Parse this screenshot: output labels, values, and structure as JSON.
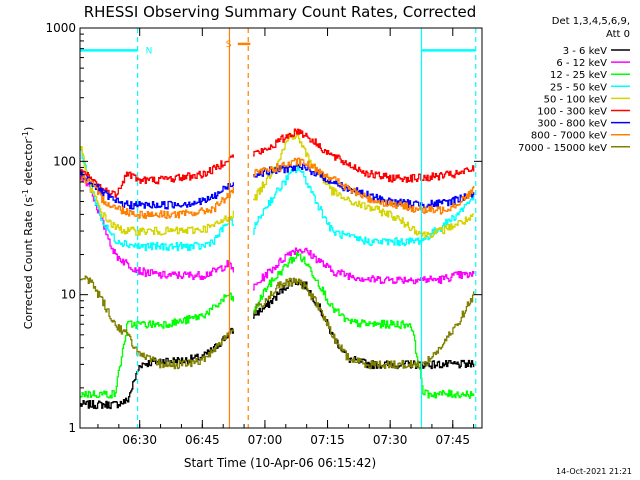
{
  "chart_data": {
    "type": "line",
    "title": "RHESSI Observing Summary Count Rates, Corrected",
    "xlabel": "Start Time (10-Apr-06 06:15:42)",
    "ylabel_main": "Corrected Count Rate (s",
    "ylabel_sup1": "-1",
    "ylabel_mid": " detector",
    "ylabel_sup2": "-1",
    "ylabel_end": ")",
    "ylabel": "Corrected Count Rate (s-1 detector-1)",
    "y_scale": "log",
    "ylim": [
      1,
      1000
    ],
    "xlim": [
      "06:15:42",
      "07:52:00"
    ],
    "x_ticks": [
      "06:30",
      "06:45",
      "07:00",
      "07:15",
      "07:30",
      "07:45"
    ],
    "y_ticks": [
      "1",
      "10",
      "100",
      "1000"
    ],
    "legend_header": [
      "Det 1,3,4,5,6,9,",
      "Att 0"
    ],
    "legend_position": "top-right",
    "data_gaps": [
      [
        "06:52:30",
        "06:57:00"
      ]
    ],
    "markers": [
      {
        "label": "N",
        "color": "#00ffff",
        "level": 680,
        "start": "06:15:42",
        "end": "06:29:30"
      },
      {
        "label": "",
        "color": "#00ffff",
        "level": 680,
        "start": "07:37:30",
        "end": "07:50:30"
      },
      {
        "label": "S",
        "color": "#ff8000",
        "level": 760,
        "start": "06:53:30",
        "end": "06:56:30"
      }
    ],
    "vlines": [
      {
        "time": "06:29:30",
        "color": "#00ffff",
        "style": "dashed"
      },
      {
        "time": "07:37:30",
        "color": "#00ffff",
        "style": "solid"
      },
      {
        "time": "07:50:30",
        "color": "#00ffff",
        "style": "dashed"
      },
      {
        "time": "06:51:30",
        "color": "#ff8000",
        "style": "solid"
      },
      {
        "time": "06:56:00",
        "color": "#ff8000",
        "style": "dashed"
      }
    ],
    "x": [
      "06:15:42",
      "06:18",
      "06:21",
      "06:24",
      "06:27",
      "06:30",
      "06:35",
      "06:40",
      "06:45",
      "06:48",
      "06:51",
      "06:57",
      "07:00",
      "07:03",
      "07:06",
      "07:08",
      "07:10",
      "07:13",
      "07:16",
      "07:20",
      "07:25",
      "07:30",
      "07:35",
      "07:38",
      "07:42",
      "07:46",
      "07:50"
    ],
    "series": [
      {
        "name": "3 - 6 keV",
        "color": "#000000",
        "values": [
          1.5,
          1.5,
          1.5,
          1.5,
          1.6,
          3.0,
          3.2,
          3.2,
          3.4,
          4.0,
          5.0,
          7.0,
          8.0,
          10.0,
          12.5,
          12.5,
          11.5,
          8.0,
          5.0,
          3.3,
          3.0,
          3.0,
          3.0,
          3.0,
          3.0,
          3.0,
          3.0
        ]
      },
      {
        "name": "6 - 12 keV",
        "color": "#ff00ff",
        "values": [
          80,
          64,
          35,
          20,
          17,
          15,
          14,
          14,
          14,
          15,
          17,
          11,
          14,
          17,
          21,
          22,
          21,
          18,
          15,
          14,
          13,
          13,
          13,
          13,
          13,
          14,
          14
        ]
      },
      {
        "name": "12 - 25 keV",
        "color": "#00ff00",
        "values": [
          1.8,
          1.8,
          1.8,
          1.8,
          6.0,
          6.0,
          6.0,
          6.3,
          7,
          8,
          10,
          7,
          11,
          14,
          18,
          20,
          17,
          12,
          8,
          6.2,
          6.0,
          6.0,
          6.0,
          1.8,
          1.8,
          1.8,
          1.8
        ]
      },
      {
        "name": "25 - 50 keV",
        "color": "#00ffff",
        "values": [
          120,
          70,
          35,
          26,
          24,
          23,
          23,
          23,
          23,
          26,
          35,
          30,
          45,
          60,
          80,
          90,
          70,
          45,
          30,
          27,
          25,
          25,
          25,
          26,
          32,
          40,
          55
        ]
      },
      {
        "name": "50 - 100 keV",
        "color": "#d4d400",
        "values": [
          130,
          65,
          40,
          32,
          30,
          30,
          30,
          30,
          31,
          33,
          38,
          50,
          70,
          100,
          160,
          150,
          110,
          80,
          60,
          50,
          45,
          40,
          32,
          28,
          30,
          34,
          38
        ]
      },
      {
        "name": "100 - 300 keV",
        "color": "#ff0000",
        "values": [
          85,
          75,
          62,
          56,
          82,
          72,
          73,
          76,
          80,
          88,
          105,
          115,
          120,
          140,
          160,
          170,
          155,
          130,
          110,
          95,
          80,
          75,
          75,
          75,
          78,
          80,
          88
        ]
      },
      {
        "name": "300 - 800 keV",
        "color": "#0000ff",
        "values": [
          80,
          72,
          58,
          50,
          47,
          47,
          47,
          48,
          50,
          55,
          65,
          80,
          84,
          86,
          90,
          90,
          88,
          80,
          70,
          62,
          55,
          50,
          48,
          48,
          48,
          52,
          58
        ]
      },
      {
        "name": "800 - 7000 keV",
        "color": "#ff8000",
        "values": [
          75,
          70,
          52,
          45,
          42,
          40,
          40,
          40,
          42,
          45,
          55,
          80,
          85,
          90,
          96,
          100,
          95,
          85,
          75,
          62,
          52,
          48,
          45,
          43,
          43,
          48,
          62
        ]
      },
      {
        "name": "7000 - 15000 keV",
        "color": "#808000",
        "values": [
          13,
          13,
          9,
          6,
          5,
          3.5,
          3.0,
          3.0,
          3.2,
          4.0,
          5.0,
          7.5,
          9.0,
          11.5,
          12.5,
          12.5,
          11,
          8,
          5,
          3.3,
          3.0,
          3.0,
          3.0,
          3.0,
          4,
          6,
          10
        ]
      }
    ]
  },
  "footer": {
    "date_stamp": "14-Oct-2021 21:21"
  }
}
